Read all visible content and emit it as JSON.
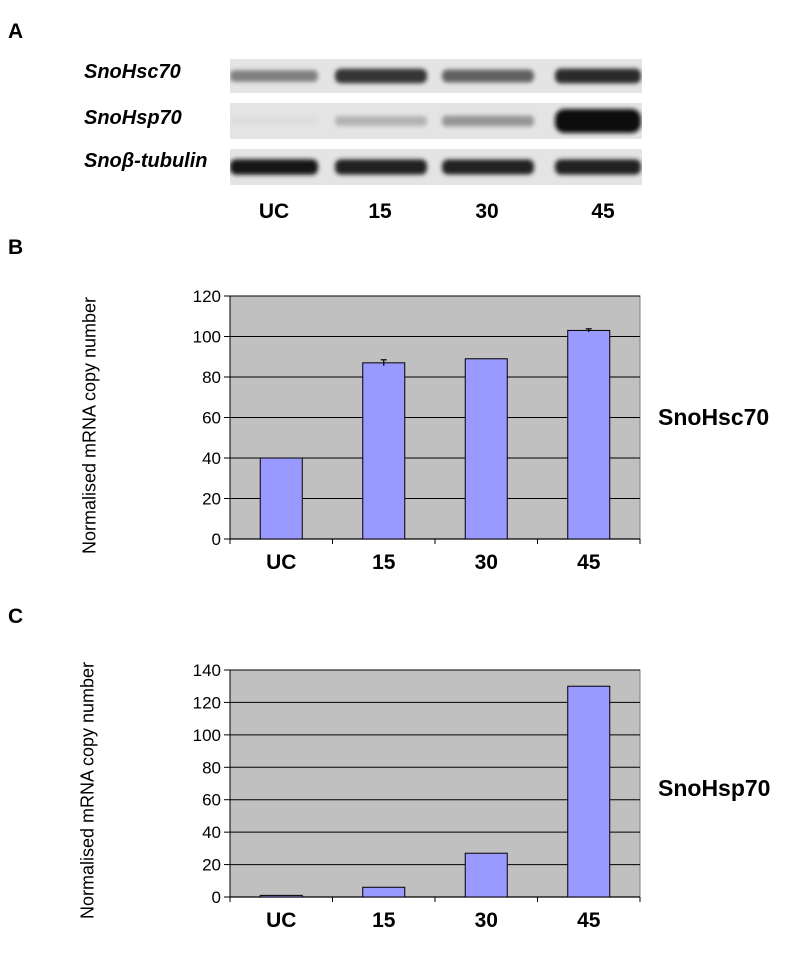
{
  "panels": {
    "a": "A",
    "b": "B",
    "c": "C"
  },
  "gel": {
    "rows": [
      {
        "label": "SnoHsc70",
        "intensity": [
          0.45,
          0.8,
          0.6,
          0.85
        ]
      },
      {
        "label": "SnoHsp70",
        "intensity": [
          0.02,
          0.22,
          0.35,
          1.0
        ]
      },
      {
        "label": "Snoβ-tubulin",
        "intensity": [
          0.95,
          0.9,
          0.88,
          0.9
        ]
      }
    ],
    "lanes": [
      "UC",
      "15",
      "30",
      "45"
    ]
  },
  "charts": {
    "b": {
      "ylabel": "Normalised mRNA copy number",
      "gene": "SnoHsc70"
    },
    "c": {
      "ylabel": "Normalised mRNA copy number",
      "gene": "SnoHsp70"
    }
  },
  "chart_data": [
    {
      "type": "bar",
      "categories": [
        "UC",
        "15",
        "30",
        "45"
      ],
      "values": [
        40,
        87,
        89,
        103
      ],
      "errors": [
        0,
        1.5,
        0,
        0.8
      ],
      "title": "",
      "xlabel": "",
      "ylabel": "Normalised mRNA copy number",
      "ylim": [
        0,
        120
      ],
      "yticks": [
        0,
        20,
        40,
        60,
        80,
        100,
        120
      ],
      "grid": true,
      "bar_color": "#9999ff",
      "plot_bg": "#c0c0c0",
      "legend": "SnoHsc70"
    },
    {
      "type": "bar",
      "categories": [
        "UC",
        "15",
        "30",
        "45"
      ],
      "values": [
        1,
        6,
        27,
        130
      ],
      "title": "",
      "xlabel": "",
      "ylabel": "Normalised mRNA copy number",
      "ylim": [
        0,
        140
      ],
      "yticks": [
        0,
        20,
        40,
        60,
        80,
        100,
        120,
        140
      ],
      "grid": true,
      "bar_color": "#9999ff",
      "plot_bg": "#c0c0c0",
      "legend": "SnoHsp70"
    }
  ]
}
